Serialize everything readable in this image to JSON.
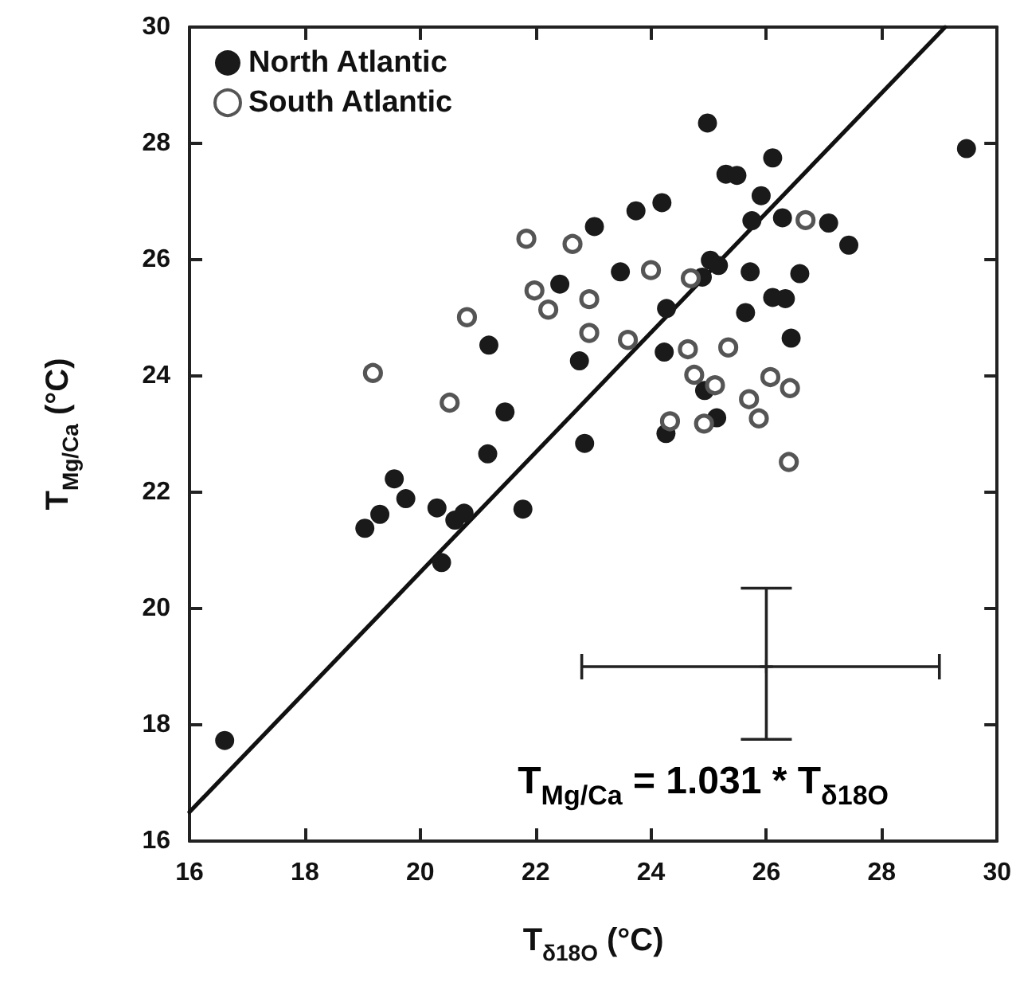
{
  "chart_data": {
    "type": "scatter",
    "xlabel": "T$_{δ18O}$ (°C)",
    "ylabel": "T$_{Mg/Ca}$ (°C)",
    "xlim": [
      16,
      30
    ],
    "xticks": [
      16,
      18,
      20,
      22,
      24,
      26,
      28,
      30
    ],
    "ylim": [
      16,
      30
    ],
    "yticks": [
      16,
      18,
      20,
      22,
      24,
      26,
      28,
      30
    ],
    "grid": false,
    "legend": "top left",
    "annotations": [
      "T$_{Mg/Ca}$ = 1.031 * T$_{δ18O}$"
    ],
    "series": [
      {
        "name": "North Atlantic",
        "color": "#1a1a1a",
        "marker": "circle",
        "x": [
          16.61,
          19.04,
          19.3,
          19.55,
          19.75,
          20.29,
          20.37,
          20.6,
          20.76,
          21.17,
          21.19,
          21.47,
          21.78,
          22.42,
          22.76,
          22.85,
          23.02,
          23.47,
          23.74,
          24.19,
          24.27,
          24.23,
          24.26,
          24.89,
          24.93,
          24.98,
          25.03,
          25.14,
          25.17,
          25.3,
          25.49,
          25.64,
          25.72,
          25.75,
          25.91,
          26.11,
          26.11,
          26.28,
          26.33,
          26.43,
          26.58,
          27.08,
          27.43,
          29.47
        ],
        "values": [
          17.73,
          21.38,
          21.62,
          22.23,
          21.89,
          21.73,
          20.79,
          21.52,
          21.64,
          22.66,
          24.53,
          23.38,
          21.71,
          25.58,
          24.26,
          22.84,
          26.57,
          25.79,
          26.84,
          26.98,
          25.16,
          24.41,
          23.01,
          25.7,
          23.75,
          28.35,
          25.99,
          23.28,
          25.9,
          27.47,
          27.45,
          25.09,
          25.79,
          26.67,
          27.1,
          27.75,
          25.35,
          26.72,
          25.33,
          24.65,
          25.76,
          26.63,
          26.25,
          27.91
        ]
      },
      {
        "name": "South Atlantic",
        "color": "#555555",
        "marker": "open circle",
        "x": [
          19.18,
          20.51,
          20.81,
          21.84,
          21.98,
          22.22,
          22.64,
          22.93,
          22.93,
          23.6,
          24.0,
          24.33,
          24.64,
          24.69,
          24.75,
          24.92,
          25.11,
          25.34,
          25.7,
          25.87,
          26.07,
          26.39,
          26.41,
          26.68
        ],
        "values": [
          24.05,
          23.54,
          25.01,
          26.36,
          25.47,
          25.14,
          26.27,
          25.32,
          24.74,
          24.62,
          25.82,
          23.22,
          24.46,
          25.68,
          24.02,
          23.18,
          23.84,
          24.49,
          23.6,
          23.27,
          23.98,
          22.52,
          23.79,
          26.68
        ]
      },
      {
        "type": "line",
        "color": "#111111",
        "marker": "none",
        "line_style": "solid",
        "x": [
          16,
          29.1
        ],
        "values": [
          16.5,
          30
        ]
      },
      {
        "color": "#222222",
        "marker": "cross",
        "x": [
          26
        ],
        "values": [
          19
        ],
        "errors": [
          [
            17.75,
            20.35
          ]
        ],
        "xerrors": [
          [
            22.8,
            29
          ]
        ]
      }
    ]
  }
}
